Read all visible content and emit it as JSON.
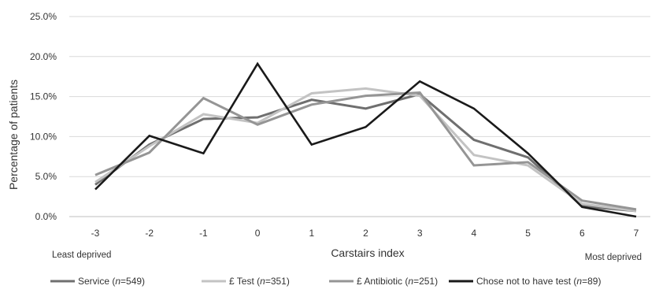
{
  "chart_data": {
    "type": "line",
    "title": "",
    "xlabel": "Carstairs index",
    "ylabel": "Percentage of patients",
    "x": [
      -3,
      -2,
      -1,
      0,
      1,
      2,
      3,
      4,
      5,
      6,
      7
    ],
    "x_tick_labels": [
      "-3",
      "-2",
      "-1",
      "0",
      "1",
      "2",
      "3",
      "4",
      "5",
      "6",
      "7"
    ],
    "ylim": [
      0,
      25
    ],
    "y_ticks": [
      0,
      5,
      10,
      15,
      20,
      25
    ],
    "y_tick_labels": [
      "0.0%",
      "5.0%",
      "10.0%",
      "15.0%",
      "20.0%",
      "25.0%"
    ],
    "grid": "horizontal",
    "legend_position": "bottom",
    "annotations": {
      "left": "Least deprived",
      "right": "Most deprived"
    },
    "series": [
      {
        "name": "Service (n=549)",
        "legend_prefix": "Service (",
        "legend_italic": "n",
        "legend_suffix": "=549)",
        "color": "#6f6f6f",
        "values": [
          4.0,
          9.0,
          12.2,
          12.4,
          14.6,
          13.5,
          15.3,
          9.6,
          7.4,
          1.3,
          0.7
        ]
      },
      {
        "name": "£ Test (n=351)",
        "legend_prefix": "£ Test (",
        "legend_italic": "n",
        "legend_suffix": "=351)",
        "color": "#c3c3c3",
        "values": [
          4.3,
          8.8,
          12.8,
          11.7,
          15.4,
          16.0,
          15.1,
          7.7,
          6.4,
          1.6,
          0.7
        ]
      },
      {
        "name": "£ Antibiotic (n=251)",
        "legend_prefix": "£ Antibiotic (",
        "legend_italic": "n",
        "legend_suffix": "=251)",
        "color": "#959595",
        "values": [
          5.2,
          8.0,
          14.8,
          11.5,
          14.0,
          15.1,
          15.5,
          6.4,
          6.8,
          2.0,
          0.9
        ]
      },
      {
        "name": "Chose not to have test (n=89)",
        "legend_prefix": "Chose not to have test (",
        "legend_italic": "n",
        "legend_suffix": "=89)",
        "color": "#1a1a1a",
        "values": [
          3.4,
          10.1,
          7.9,
          19.1,
          9.0,
          11.2,
          16.9,
          13.5,
          7.9,
          1.2,
          0.0
        ]
      }
    ]
  }
}
